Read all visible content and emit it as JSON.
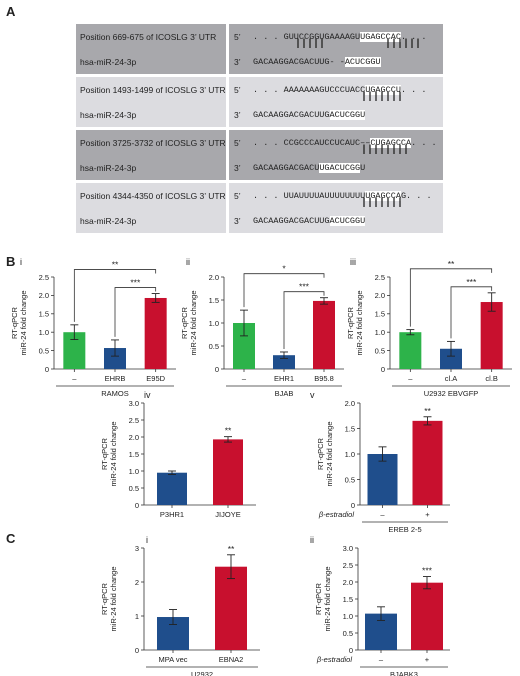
{
  "panels": {
    "A": "A",
    "B": "B",
    "C": "C"
  },
  "sequence_panel": {
    "rows": [
      {
        "position": "Position 669-675 of ICOSLG 3’ UTR",
        "mirna": "hsa-miR-24-3p",
        "utr_prime": "5’",
        "mir_prime": "3’",
        "utr_pre": ". . . GUUCCGGUGAAAAGU",
        "utr_hl": "UGAGCCAC",
        "utr_post": ". . .",
        "bars": "       |||||          ||||||",
        "mir_pre": "GACAAGGACGACUUG- -",
        "mir_hl": "ACUCGGU",
        "mir_post": "",
        "shade": "dark"
      },
      {
        "position": "Position 1493-1499 of ICOSLG 3’ UTR",
        "mirna": "hsa-miR-24-3p",
        "utr_prime": "5’",
        "mir_prime": "3’",
        "utr_pre": ". . . AAAAAAAGUCCCUACC",
        "utr_hl": "UGAGCCU",
        "utr_post": ". . .",
        "bars": "                  |||||||",
        "mir_pre": "GACAAGGACGACUUG",
        "mir_hl": "ACUCGGU",
        "mir_post": "",
        "shade": "light"
      },
      {
        "position": "Position 3725-3732 of ICOSLG 3’ UTR",
        "mirna": "hsa-miR-24-3p",
        "utr_prime": "5’",
        "mir_prime": "3’",
        "utr_pre": ". . . CCGCCCAUCCUCAUC––",
        "utr_hl": "CUGAGCCA",
        "utr_post": ". . .",
        "bars": "                  ||||||||",
        "mir_pre": "GACAAGGACGACU",
        "mir_hl": "UGACUCGG",
        "mir_post": "U",
        "shade": "dark"
      },
      {
        "position": "Position 4344-4350 of ICOSLG 3’ UTR",
        "mirna": "hsa-miR-24-3p",
        "utr_prime": "5’",
        "mir_prime": "3’",
        "utr_pre": ". . . UUAUUUUAUUUUUUUU",
        "utr_hl": "UGAGCCA",
        "utr_post": "G. . .",
        "bars": "                  |||||||",
        "mir_pre": "GACAAGGACGACUUG",
        "mir_hl": "ACUCGGU",
        "mir_post": "",
        "shade": "light"
      }
    ]
  },
  "chart_data": [
    {
      "id": "B-i",
      "sub": "i",
      "type": "bar",
      "categories": [
        "–",
        "EHRB",
        "E95D"
      ],
      "values": [
        1.0,
        0.57,
        1.93
      ],
      "errors": [
        0.2,
        0.22,
        0.12
      ],
      "colors": [
        "#2db34a",
        "#1f4e8c",
        "#c8102e"
      ],
      "ylabel": "RT-qPCR\nmiR-24 fold change",
      "ylim": [
        0,
        2.5
      ],
      "yticks": [
        "0",
        "0.5",
        "1.0",
        "1.5",
        "2.0",
        "2.5"
      ],
      "group_label": "RAMOS",
      "significance": [
        {
          "from": 0,
          "to": 2,
          "label": "**"
        },
        {
          "from": 1,
          "to": 2,
          "label": "***"
        }
      ]
    },
    {
      "id": "B-ii",
      "sub": "ii",
      "type": "bar",
      "categories": [
        "–",
        "EHR1",
        "B95.8"
      ],
      "values": [
        1.0,
        0.3,
        1.48
      ],
      "errors": [
        0.28,
        0.07,
        0.07
      ],
      "colors": [
        "#2db34a",
        "#1f4e8c",
        "#c8102e"
      ],
      "ylabel": "RT-qPCR\nmiR-24 fold change",
      "ylim": [
        0,
        2.0
      ],
      "yticks": [
        "0",
        "0.5",
        "1.0",
        "1.5",
        "2.0"
      ],
      "group_label": "BJAB",
      "significance": [
        {
          "from": 0,
          "to": 2,
          "label": "*"
        },
        {
          "from": 1,
          "to": 2,
          "label": "***"
        }
      ]
    },
    {
      "id": "B-iii",
      "sub": "iii",
      "type": "bar",
      "categories": [
        "–",
        "cl.A",
        "cl.B"
      ],
      "values": [
        1.0,
        0.55,
        1.82
      ],
      "errors": [
        0.07,
        0.2,
        0.25
      ],
      "colors": [
        "#2db34a",
        "#1f4e8c",
        "#c8102e"
      ],
      "ylabel": "RT-qPCR\nmiR-24 fold change",
      "ylim": [
        0,
        2.5
      ],
      "yticks": [
        "0",
        "0.5",
        "1.0",
        "1.5",
        "2.0",
        "2.5"
      ],
      "group_label": "U2932 EBVGFP",
      "significance": [
        {
          "from": 0,
          "to": 2,
          "label": "**"
        },
        {
          "from": 1,
          "to": 2,
          "label": "***"
        }
      ]
    },
    {
      "id": "B-iv",
      "sub": "iv",
      "type": "bar",
      "categories": [
        "P3HR1",
        "JIJOYE"
      ],
      "values": [
        0.95,
        1.93
      ],
      "errors": [
        0.05,
        0.08
      ],
      "colors": [
        "#1f4e8c",
        "#c8102e"
      ],
      "ylabel": "RT-qPCR\nmiR-24 fold change",
      "ylim": [
        0,
        3.0
      ],
      "yticks": [
        "0",
        "0.5",
        "1.0",
        "1.5",
        "2.0",
        "2.5",
        "3.0"
      ],
      "group_label": "",
      "significance": [
        {
          "on": 1,
          "label": "**"
        }
      ]
    },
    {
      "id": "B-v",
      "sub": "v",
      "type": "bar",
      "categories": [
        "–",
        "+"
      ],
      "values": [
        1.0,
        1.65
      ],
      "errors": [
        0.14,
        0.08
      ],
      "colors": [
        "#1f4e8c",
        "#c8102e"
      ],
      "ylabel": "RT-qPCR\nmiR-24 fold change",
      "ylim": [
        0,
        2.0
      ],
      "yticks": [
        "0",
        "0.5",
        "1.0",
        "1.5",
        "2.0"
      ],
      "group_label": "EREB 2-5",
      "row_label": "β-estradiol",
      "significance": [
        {
          "on": 1,
          "label": "**"
        }
      ]
    },
    {
      "id": "C-i",
      "sub": "i",
      "type": "bar",
      "categories": [
        "MPA vec",
        "EBNA2"
      ],
      "values": [
        0.97,
        2.45
      ],
      "errors": [
        0.22,
        0.35
      ],
      "colors": [
        "#1f4e8c",
        "#c8102e"
      ],
      "ylabel": "RT-qPCR\nmiR-24 fold change",
      "ylim": [
        0,
        3.0
      ],
      "yticks": [
        "0",
        "1",
        "2",
        "3"
      ],
      "group_label": "U2932",
      "significance": [
        {
          "on": 1,
          "label": "**"
        }
      ]
    },
    {
      "id": "C-ii",
      "sub": "ii",
      "type": "bar",
      "categories": [
        "–",
        "+"
      ],
      "values": [
        1.07,
        1.98
      ],
      "errors": [
        0.2,
        0.18
      ],
      "colors": [
        "#1f4e8c",
        "#c8102e"
      ],
      "ylabel": "RT-qPCR\nmiR-24 fold change",
      "ylim": [
        0,
        3.0
      ],
      "yticks": [
        "0",
        "0.5",
        "1.0",
        "1.5",
        "2.0",
        "2.5",
        "3.0"
      ],
      "group_label": "BJABK3",
      "row_label": "β-estradiol",
      "significance": [
        {
          "on": 1,
          "label": "***"
        }
      ]
    }
  ]
}
